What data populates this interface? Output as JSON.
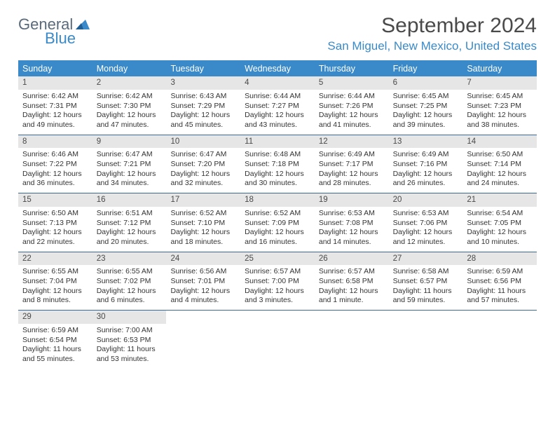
{
  "logo": {
    "word1": "General",
    "word2": "Blue"
  },
  "title": "September 2024",
  "location": "San Miguel, New Mexico, United States",
  "weekdays": [
    "Sunday",
    "Monday",
    "Tuesday",
    "Wednesday",
    "Thursday",
    "Friday",
    "Saturday"
  ],
  "colors": {
    "header_bar": "#3a8ac9",
    "header_text": "#ffffff",
    "day_num_bg": "#e6e6e6",
    "row_divider": "#3a6a95",
    "title_color": "#4a4a4a",
    "location_color": "#3a8ac9"
  },
  "weeks": [
    [
      {
        "n": "1",
        "sr": "Sunrise: 6:42 AM",
        "ss": "Sunset: 7:31 PM",
        "d1": "Daylight: 12 hours",
        "d2": "and 49 minutes."
      },
      {
        "n": "2",
        "sr": "Sunrise: 6:42 AM",
        "ss": "Sunset: 7:30 PM",
        "d1": "Daylight: 12 hours",
        "d2": "and 47 minutes."
      },
      {
        "n": "3",
        "sr": "Sunrise: 6:43 AM",
        "ss": "Sunset: 7:29 PM",
        "d1": "Daylight: 12 hours",
        "d2": "and 45 minutes."
      },
      {
        "n": "4",
        "sr": "Sunrise: 6:44 AM",
        "ss": "Sunset: 7:27 PM",
        "d1": "Daylight: 12 hours",
        "d2": "and 43 minutes."
      },
      {
        "n": "5",
        "sr": "Sunrise: 6:44 AM",
        "ss": "Sunset: 7:26 PM",
        "d1": "Daylight: 12 hours",
        "d2": "and 41 minutes."
      },
      {
        "n": "6",
        "sr": "Sunrise: 6:45 AM",
        "ss": "Sunset: 7:25 PM",
        "d1": "Daylight: 12 hours",
        "d2": "and 39 minutes."
      },
      {
        "n": "7",
        "sr": "Sunrise: 6:45 AM",
        "ss": "Sunset: 7:23 PM",
        "d1": "Daylight: 12 hours",
        "d2": "and 38 minutes."
      }
    ],
    [
      {
        "n": "8",
        "sr": "Sunrise: 6:46 AM",
        "ss": "Sunset: 7:22 PM",
        "d1": "Daylight: 12 hours",
        "d2": "and 36 minutes."
      },
      {
        "n": "9",
        "sr": "Sunrise: 6:47 AM",
        "ss": "Sunset: 7:21 PM",
        "d1": "Daylight: 12 hours",
        "d2": "and 34 minutes."
      },
      {
        "n": "10",
        "sr": "Sunrise: 6:47 AM",
        "ss": "Sunset: 7:20 PM",
        "d1": "Daylight: 12 hours",
        "d2": "and 32 minutes."
      },
      {
        "n": "11",
        "sr": "Sunrise: 6:48 AM",
        "ss": "Sunset: 7:18 PM",
        "d1": "Daylight: 12 hours",
        "d2": "and 30 minutes."
      },
      {
        "n": "12",
        "sr": "Sunrise: 6:49 AM",
        "ss": "Sunset: 7:17 PM",
        "d1": "Daylight: 12 hours",
        "d2": "and 28 minutes."
      },
      {
        "n": "13",
        "sr": "Sunrise: 6:49 AM",
        "ss": "Sunset: 7:16 PM",
        "d1": "Daylight: 12 hours",
        "d2": "and 26 minutes."
      },
      {
        "n": "14",
        "sr": "Sunrise: 6:50 AM",
        "ss": "Sunset: 7:14 PM",
        "d1": "Daylight: 12 hours",
        "d2": "and 24 minutes."
      }
    ],
    [
      {
        "n": "15",
        "sr": "Sunrise: 6:50 AM",
        "ss": "Sunset: 7:13 PM",
        "d1": "Daylight: 12 hours",
        "d2": "and 22 minutes."
      },
      {
        "n": "16",
        "sr": "Sunrise: 6:51 AM",
        "ss": "Sunset: 7:12 PM",
        "d1": "Daylight: 12 hours",
        "d2": "and 20 minutes."
      },
      {
        "n": "17",
        "sr": "Sunrise: 6:52 AM",
        "ss": "Sunset: 7:10 PM",
        "d1": "Daylight: 12 hours",
        "d2": "and 18 minutes."
      },
      {
        "n": "18",
        "sr": "Sunrise: 6:52 AM",
        "ss": "Sunset: 7:09 PM",
        "d1": "Daylight: 12 hours",
        "d2": "and 16 minutes."
      },
      {
        "n": "19",
        "sr": "Sunrise: 6:53 AM",
        "ss": "Sunset: 7:08 PM",
        "d1": "Daylight: 12 hours",
        "d2": "and 14 minutes."
      },
      {
        "n": "20",
        "sr": "Sunrise: 6:53 AM",
        "ss": "Sunset: 7:06 PM",
        "d1": "Daylight: 12 hours",
        "d2": "and 12 minutes."
      },
      {
        "n": "21",
        "sr": "Sunrise: 6:54 AM",
        "ss": "Sunset: 7:05 PM",
        "d1": "Daylight: 12 hours",
        "d2": "and 10 minutes."
      }
    ],
    [
      {
        "n": "22",
        "sr": "Sunrise: 6:55 AM",
        "ss": "Sunset: 7:04 PM",
        "d1": "Daylight: 12 hours",
        "d2": "and 8 minutes."
      },
      {
        "n": "23",
        "sr": "Sunrise: 6:55 AM",
        "ss": "Sunset: 7:02 PM",
        "d1": "Daylight: 12 hours",
        "d2": "and 6 minutes."
      },
      {
        "n": "24",
        "sr": "Sunrise: 6:56 AM",
        "ss": "Sunset: 7:01 PM",
        "d1": "Daylight: 12 hours",
        "d2": "and 4 minutes."
      },
      {
        "n": "25",
        "sr": "Sunrise: 6:57 AM",
        "ss": "Sunset: 7:00 PM",
        "d1": "Daylight: 12 hours",
        "d2": "and 3 minutes."
      },
      {
        "n": "26",
        "sr": "Sunrise: 6:57 AM",
        "ss": "Sunset: 6:58 PM",
        "d1": "Daylight: 12 hours",
        "d2": "and 1 minute."
      },
      {
        "n": "27",
        "sr": "Sunrise: 6:58 AM",
        "ss": "Sunset: 6:57 PM",
        "d1": "Daylight: 11 hours",
        "d2": "and 59 minutes."
      },
      {
        "n": "28",
        "sr": "Sunrise: 6:59 AM",
        "ss": "Sunset: 6:56 PM",
        "d1": "Daylight: 11 hours",
        "d2": "and 57 minutes."
      }
    ],
    [
      {
        "n": "29",
        "sr": "Sunrise: 6:59 AM",
        "ss": "Sunset: 6:54 PM",
        "d1": "Daylight: 11 hours",
        "d2": "and 55 minutes."
      },
      {
        "n": "30",
        "sr": "Sunrise: 7:00 AM",
        "ss": "Sunset: 6:53 PM",
        "d1": "Daylight: 11 hours",
        "d2": "and 53 minutes."
      },
      null,
      null,
      null,
      null,
      null
    ]
  ]
}
